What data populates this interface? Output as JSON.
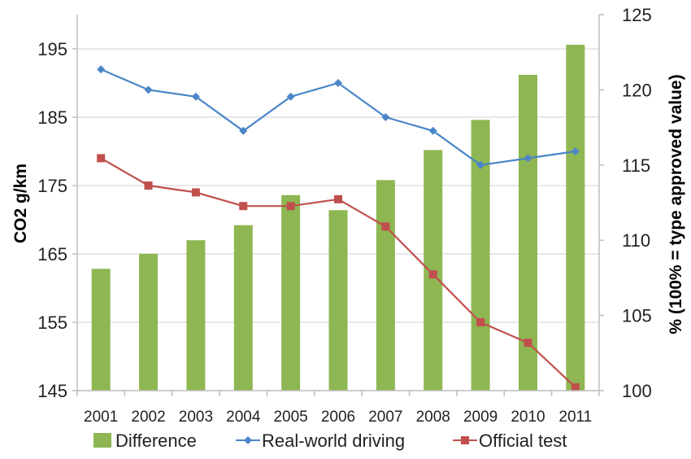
{
  "chart_data": {
    "type": "bar",
    "categories": [
      "2001",
      "2002",
      "2003",
      "2004",
      "2005",
      "2006",
      "2007",
      "2008",
      "2009",
      "2010",
      "2011"
    ],
    "title": "",
    "ylabel_left": "CO2 g/km",
    "ylabel_right": "% (100% = type approved value)",
    "ylim_left": [
      145,
      200
    ],
    "ylim_right": [
      100,
      125
    ],
    "yticks_left": [
      "145",
      "155",
      "165",
      "175",
      "185",
      "195"
    ],
    "yticks_right": [
      "100",
      "105",
      "110",
      "115",
      "120",
      "125"
    ],
    "grid": "horizontal",
    "legend_position": "bottom",
    "series": [
      {
        "name": "Difference",
        "type": "bar",
        "axis": "right",
        "color": "#8eb652",
        "values": [
          108.1,
          109.1,
          110.0,
          111.0,
          113.0,
          112.0,
          114.0,
          116.0,
          118.0,
          121.0,
          123.0
        ]
      },
      {
        "name": "Real-world driving",
        "type": "line",
        "axis": "left",
        "color": "#4a86c8",
        "marker": "diamond",
        "values": [
          192,
          189,
          188,
          183,
          188,
          190,
          185,
          183,
          178,
          179,
          180
        ]
      },
      {
        "name": "Official test",
        "type": "line",
        "axis": "left",
        "color": "#c0504d",
        "marker": "square",
        "values": [
          179,
          175,
          174,
          172,
          172,
          173,
          169,
          162,
          155,
          152,
          145.5
        ]
      }
    ]
  }
}
